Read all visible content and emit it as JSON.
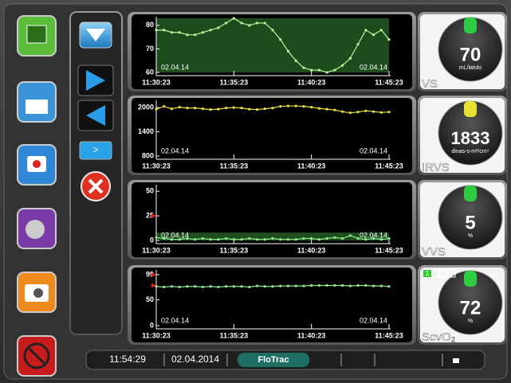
{
  "nav": {
    "next_label": ">"
  },
  "panels": [
    {
      "name": "VS",
      "value": 70,
      "unit": "mL/latido",
      "gauge_color": "#2ecc40",
      "chart": {
        "type": "line",
        "color": "#b8f5a0",
        "start_date": "02.04.14",
        "end_date": "02.04.14",
        "xticks": [
          "11:30:23",
          "11:35:23",
          "11:40:23",
          "11:45:23"
        ],
        "ylim": [
          60,
          83
        ],
        "yticks": [
          60,
          70,
          80
        ],
        "target_range": [
          60,
          83
        ],
        "values": [
          78,
          78,
          77,
          77,
          76,
          76,
          77,
          78,
          79,
          81,
          83,
          81,
          80,
          81,
          81,
          78,
          74,
          69,
          65,
          62,
          61,
          61,
          60,
          61,
          63,
          66,
          72,
          78,
          76,
          78,
          74
        ]
      }
    },
    {
      "name": "IRVS",
      "value": 1833,
      "unit": "dinas-s-m²/cm⁵",
      "gauge_color": "#e8e030",
      "chart": {
        "type": "line",
        "color": "#e8e040",
        "start_date": "02.04.14",
        "end_date": "02.04.14",
        "xticks": [
          "11:30:23",
          "11:35:23",
          "11:40:23",
          "11:45:23"
        ],
        "ylim": [
          800,
          2140
        ],
        "yticks": [
          800,
          1400,
          2000
        ],
        "values": [
          1960,
          2030,
          1970,
          2010,
          1990,
          1990,
          1970,
          1950,
          1960,
          1990,
          2000,
          1990,
          1960,
          1950,
          1970,
          1990,
          2030,
          2040,
          2040,
          2030,
          2010,
          1980,
          1960,
          1940,
          1900,
          1870,
          1890,
          1920,
          1900,
          1880,
          1890
        ]
      }
    },
    {
      "name": "VVS",
      "value": 5,
      "unit": "%",
      "gauge_color": "#2ecc40",
      "chart": {
        "type": "line",
        "color": "#90e890",
        "start_date": "02.04.14",
        "end_date": "02.04.14",
        "xticks": [
          "11:30:23",
          "11:35:23",
          "11:40:23",
          "11:45:23"
        ],
        "ylim": [
          0,
          55
        ],
        "yticks": [
          0,
          25,
          50
        ],
        "target_range": [
          0,
          8
        ],
        "limit_markers": [
          25
        ],
        "values": [
          3,
          2,
          1,
          1,
          2,
          1,
          2,
          1,
          1,
          2,
          1,
          1,
          2,
          1,
          1,
          2,
          1,
          1,
          1,
          2,
          2,
          1,
          2,
          3,
          2,
          5,
          2,
          1,
          2,
          1,
          2
        ]
      }
    },
    {
      "name": "ScvO₂",
      "value": 72,
      "unit": "%",
      "gauge_color": "#2ecc40",
      "signal_quality": "1",
      "chart": {
        "type": "line",
        "color": "#90e890",
        "start_date": "02.04.14",
        "end_date": "02.04.14",
        "xticks": [
          "11:30:23",
          "11:35:23",
          "11:40:23",
          "11:45:23"
        ],
        "ylim": [
          0,
          105
        ],
        "yticks": [
          0,
          50,
          99
        ],
        "limit_markers": [
          99,
          78
        ],
        "values": [
          76,
          75,
          76,
          75,
          76,
          76,
          75,
          76,
          75,
          76,
          76,
          76,
          75,
          77,
          76,
          76,
          77,
          77,
          77,
          77,
          78,
          78,
          78,
          78,
          78,
          77,
          78,
          78,
          77,
          77,
          76
        ]
      }
    }
  ],
  "status_bar": {
    "time": "11:54:29",
    "date": "02.04.2014",
    "mode": "FloTrac"
  }
}
